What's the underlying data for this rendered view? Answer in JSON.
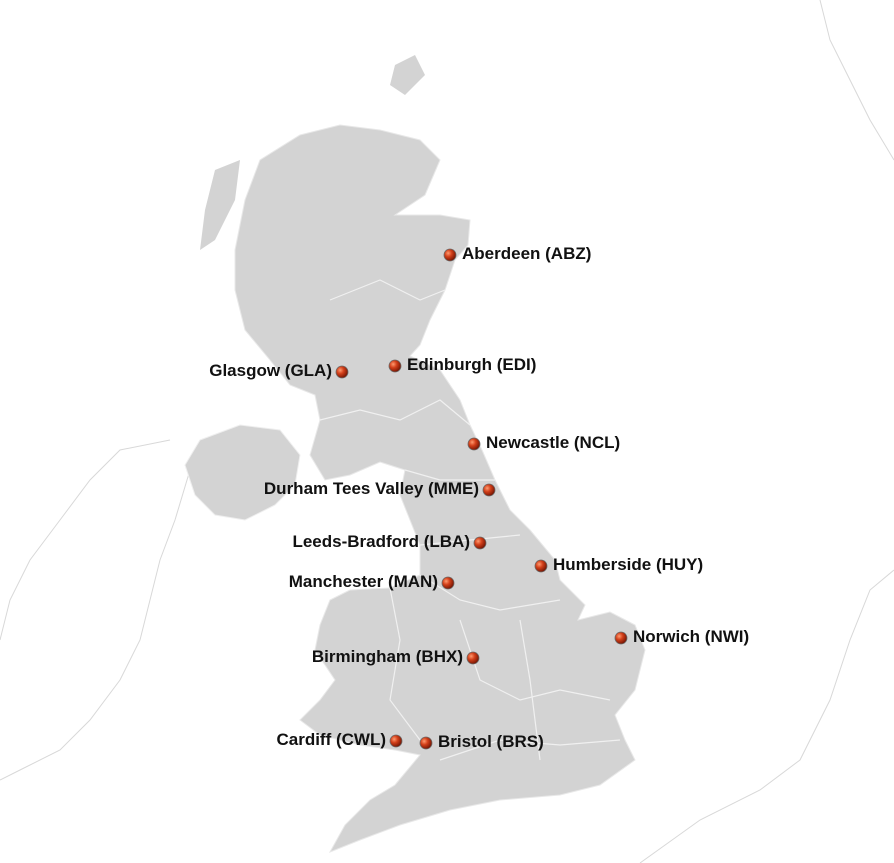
{
  "map": {
    "land_color": "#d3d3d3",
    "boundary_color": "#f2f2f2",
    "marker_color": "#c0300f",
    "airports": [
      {
        "name": "Aberdeen (ABZ)",
        "side": "right"
      },
      {
        "name": "Edinburgh (EDI)",
        "side": "right"
      },
      {
        "name": "Glasgow (GLA)",
        "side": "left"
      },
      {
        "name": "Newcastle (NCL)",
        "side": "right"
      },
      {
        "name": "Durham Tees Valley (MME)",
        "side": "left"
      },
      {
        "name": "Leeds-Bradford (LBA)",
        "side": "left"
      },
      {
        "name": "Humberside (HUY)",
        "side": "right"
      },
      {
        "name": "Manchester (MAN)",
        "side": "left"
      },
      {
        "name": "Norwich (NWI)",
        "side": "right"
      },
      {
        "name": "Birmingham (BHX)",
        "side": "left"
      },
      {
        "name": "Cardiff (CWL)",
        "side": "left"
      },
      {
        "name": "Bristol (BRS)",
        "side": "right"
      }
    ]
  }
}
